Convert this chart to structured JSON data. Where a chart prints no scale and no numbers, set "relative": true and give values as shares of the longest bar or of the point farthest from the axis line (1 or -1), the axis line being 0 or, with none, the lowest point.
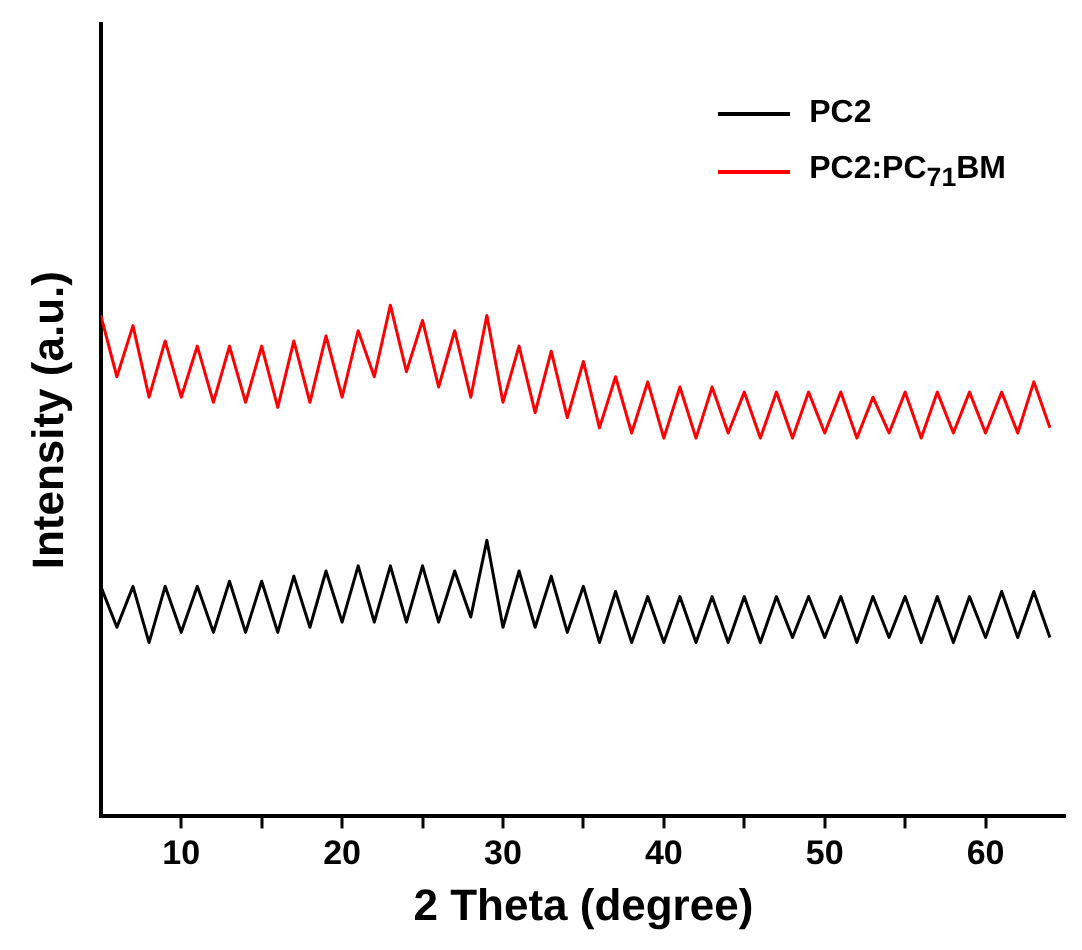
{
  "chart_data": {
    "type": "line",
    "xlabel": "2 Theta (degree)",
    "ylabel": "Intensity (a.u.)",
    "relative": true,
    "legend": "top right",
    "grid": false,
    "marker": "none",
    "line_style": "solid",
    "xlim": [
      5,
      65
    ],
    "xticks": [
      10,
      {
        "value": 15,
        "label": null
      },
      20,
      {
        "value": 25,
        "label": null
      },
      30,
      {
        "value": 35,
        "label": null
      },
      40,
      {
        "value": 45,
        "label": null
      },
      50,
      {
        "value": 55,
        "label": null
      },
      60
    ],
    "x": [
      5,
      6,
      7,
      8,
      9,
      10,
      11,
      12,
      13,
      14,
      15,
      16,
      17,
      18,
      19,
      20,
      21,
      22,
      23,
      24,
      25,
      26,
      27,
      28,
      29,
      30,
      31,
      32,
      33,
      34,
      35,
      36,
      37,
      38,
      39,
      40,
      41,
      42,
      43,
      44,
      45,
      46,
      47,
      48,
      49,
      50,
      51,
      52,
      53,
      54,
      55,
      56,
      57,
      58,
      59,
      60,
      61,
      62,
      63,
      64
    ],
    "series": [
      {
        "name": "PC2",
        "color": "#000000",
        "values": [
          0.45,
          0.37,
          0.45,
          0.34,
          0.45,
          0.36,
          0.45,
          0.36,
          0.46,
          0.36,
          0.46,
          0.36,
          0.47,
          0.37,
          0.48,
          0.38,
          0.49,
          0.38,
          0.49,
          0.38,
          0.49,
          0.38,
          0.48,
          0.39,
          0.54,
          0.37,
          0.48,
          0.37,
          0.47,
          0.36,
          0.45,
          0.34,
          0.44,
          0.34,
          0.43,
          0.34,
          0.43,
          0.34,
          0.43,
          0.34,
          0.43,
          0.34,
          0.43,
          0.35,
          0.43,
          0.35,
          0.43,
          0.34,
          0.43,
          0.35,
          0.43,
          0.34,
          0.43,
          0.34,
          0.43,
          0.35,
          0.44,
          0.35,
          0.44,
          0.35
        ]
      },
      {
        "name": "PC2:PC$_{71}$BM",
        "color": "#ff0000",
        "values": [
          0.98,
          0.86,
          0.96,
          0.82,
          0.93,
          0.82,
          0.92,
          0.81,
          0.92,
          0.81,
          0.92,
          0.8,
          0.93,
          0.81,
          0.94,
          0.82,
          0.95,
          0.86,
          1.0,
          0.87,
          0.97,
          0.84,
          0.95,
          0.82,
          0.98,
          0.81,
          0.92,
          0.79,
          0.91,
          0.78,
          0.89,
          0.76,
          0.86,
          0.75,
          0.85,
          0.74,
          0.84,
          0.74,
          0.84,
          0.75,
          0.83,
          0.74,
          0.83,
          0.74,
          0.83,
          0.75,
          0.83,
          0.74,
          0.82,
          0.75,
          0.83,
          0.74,
          0.83,
          0.75,
          0.83,
          0.75,
          0.83,
          0.75,
          0.85,
          0.76
        ]
      }
    ]
  }
}
